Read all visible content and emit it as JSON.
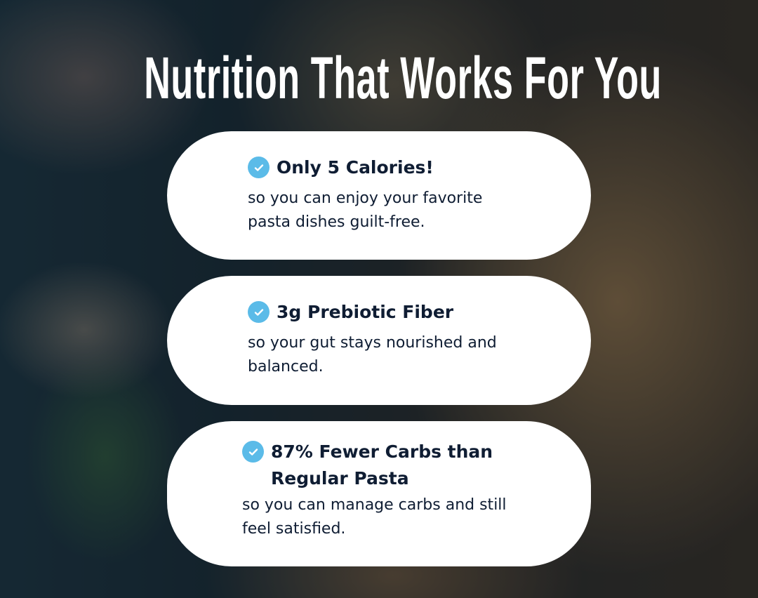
{
  "title": "Nutrition That Works For You",
  "accent_color": "#5bbbe8",
  "text_color": "#0f1d33",
  "features": [
    {
      "icon": "check-circle-icon",
      "heading": "Only 5 Calories!",
      "description": "so you can enjoy your favorite pasta dishes guilt-free."
    },
    {
      "icon": "check-circle-icon",
      "heading": "3g Prebiotic Fiber",
      "description": "so your gut stays nourished and balanced."
    },
    {
      "icon": "check-circle-icon",
      "heading": "87% Fewer Carbs than Regular Pasta",
      "description": "so you can manage carbs and still feel satisfied."
    }
  ]
}
